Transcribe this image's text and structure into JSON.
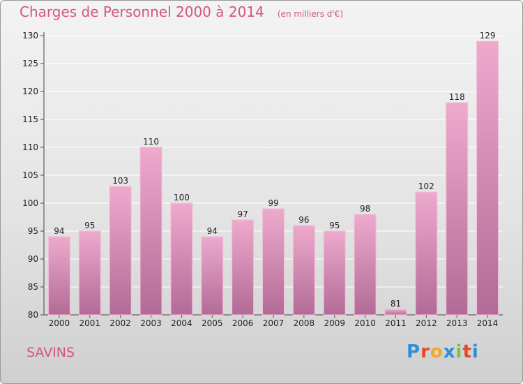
{
  "header": {
    "title": "Charges de Personnel 2000 à 2014",
    "subtitle": "(en milliers d'€)"
  },
  "footer": {
    "commune": "SAVINS",
    "brand": "Proxiti",
    "brand_colors": [
      "#2e8fd6",
      "#e8462a",
      "#f5a623",
      "#2e8fd6",
      "#7ac142",
      "#e8462a",
      "#2e8fd6"
    ]
  },
  "chart_data": {
    "type": "bar",
    "categories": [
      "2000",
      "2001",
      "2002",
      "2003",
      "2004",
      "2005",
      "2006",
      "2007",
      "2008",
      "2009",
      "2010",
      "2011",
      "2012",
      "2013",
      "2014"
    ],
    "values": [
      94,
      95,
      103,
      110,
      100,
      94,
      97,
      99,
      96,
      95,
      98,
      81,
      102,
      118,
      129
    ],
    "data_labels": [
      "94",
      "95",
      "103",
      "110",
      "100",
      "94",
      "97",
      "99",
      "96",
      "95",
      "98",
      "81",
      "102",
      "118",
      "129"
    ],
    "title": "Charges de Personnel 2000 à 2014",
    "subtitle": "(en milliers d'€)",
    "xlabel": "",
    "ylabel": "",
    "ylim": [
      80,
      130
    ],
    "yticks": [
      80,
      85,
      90,
      95,
      100,
      105,
      110,
      115,
      120,
      125,
      130
    ],
    "ytick_labels": [
      "80",
      "85",
      "90",
      "95",
      "100",
      "105",
      "110",
      "115",
      "120",
      "125",
      "130"
    ],
    "grid": true,
    "legend": "none",
    "colors": {
      "bar_top": "#eeaacd",
      "bar_bottom": "#b26b96",
      "bar_edge": "#f3bfd8",
      "grid": "#ffffff"
    }
  }
}
